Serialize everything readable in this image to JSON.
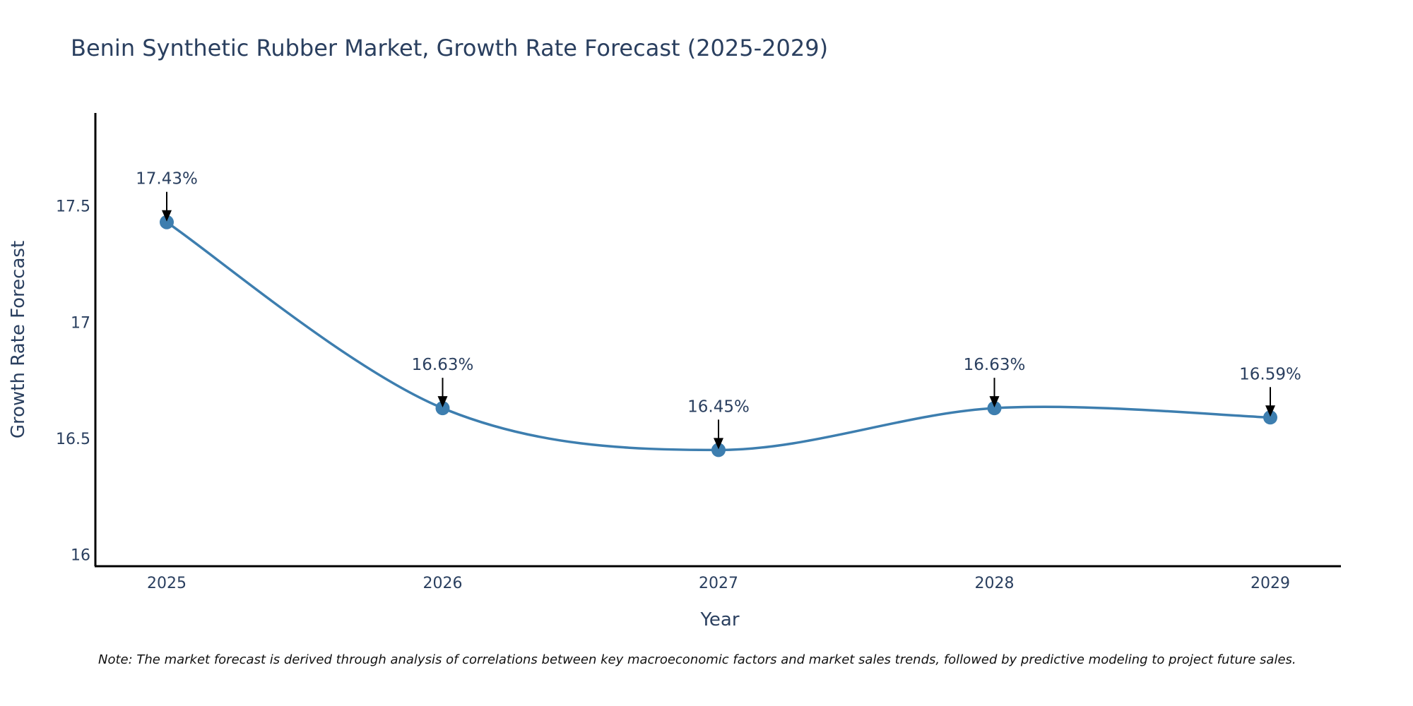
{
  "chart_data": {
    "type": "line",
    "title": "Benin Synthetic Rubber Market, Growth Rate Forecast (2025-2029)",
    "xlabel": "Year",
    "ylabel": "Growth Rate Forecast",
    "categories": [
      "2025",
      "2026",
      "2027",
      "2028",
      "2029"
    ],
    "series": [
      {
        "name": "Growth Rate Forecast",
        "values": [
          17.43,
          16.63,
          16.45,
          16.63,
          16.59
        ],
        "color": "#3d7eaf"
      }
    ],
    "data_labels": [
      "17.43%",
      "16.63%",
      "16.45%",
      "16.63%",
      "16.59%"
    ],
    "yticks": [
      16,
      16.5,
      17,
      17.5
    ],
    "ytick_labels": [
      "16",
      "16.5",
      "17",
      "17.5"
    ],
    "ylim": [
      15.95,
      17.9
    ],
    "grid": false,
    "line_shape": "spline",
    "note": "Note: The market forecast is derived through analysis of correlations between key macroeconomic factors and market sales trends, followed by predictive modeling to project future sales."
  }
}
